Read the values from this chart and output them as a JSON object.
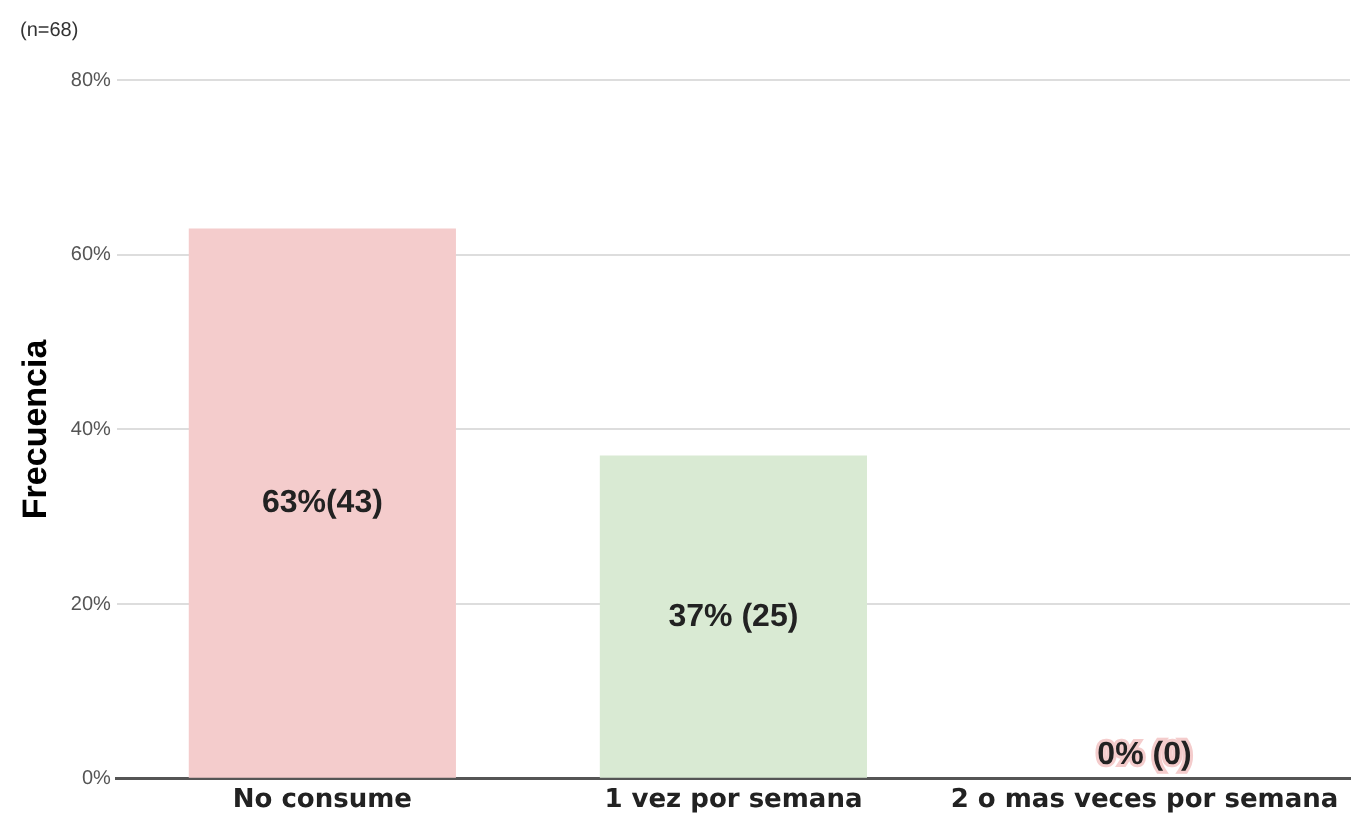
{
  "chart_data": {
    "type": "bar",
    "ylabel": "Frecuencia",
    "annotations": [
      "(n=68)"
    ],
    "categories": [
      "No consume",
      "1 vez por semana",
      "2 o mas veces por semana"
    ],
    "values": [
      63,
      37,
      0
    ],
    "colors": [
      "#f4cccc",
      "#d9ead3",
      "#f4cccc"
    ],
    "value_labels": [
      "63%(43)",
      "37% (25)",
      "0% (0)"
    ],
    "ylim": [
      0,
      80
    ],
    "yticks": [
      {
        "value": 0,
        "label": "0%"
      },
      {
        "value": 20,
        "label": "20%"
      },
      {
        "value": 40,
        "label": "40%"
      },
      {
        "value": 60,
        "label": "60%"
      },
      {
        "value": 80,
        "label": "80%"
      }
    ],
    "grid": "y",
    "legend": false
  }
}
